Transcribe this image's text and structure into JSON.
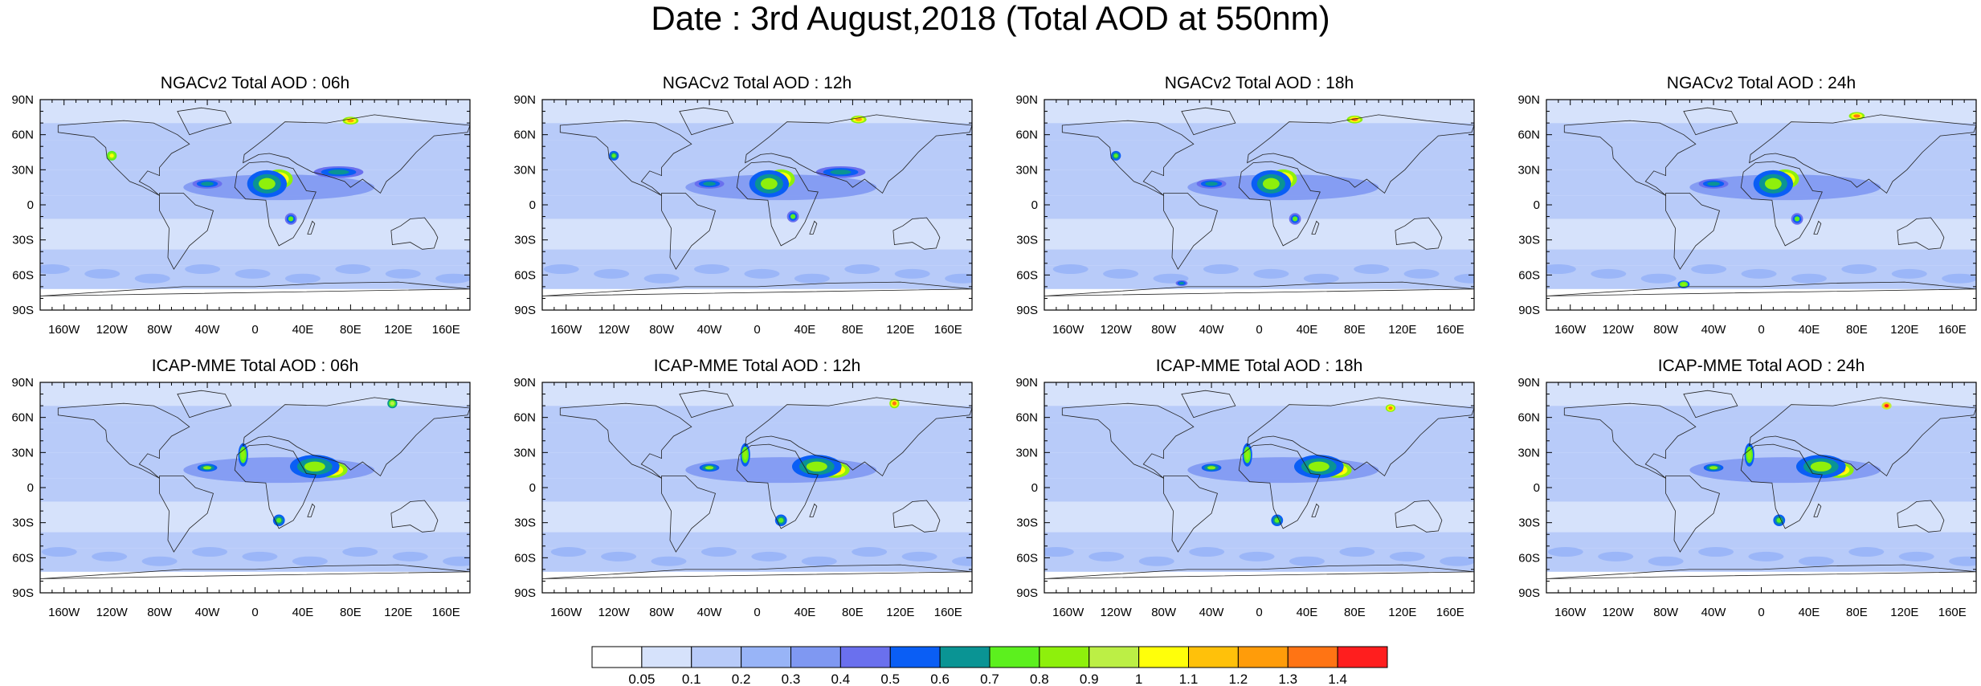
{
  "title": "Date : 3rd August,2018 (Total AOD at 550nm)",
  "axes": {
    "x_ticks": [
      "160W",
      "120W",
      "80W",
      "40W",
      "0",
      "40E",
      "80E",
      "120E",
      "160E"
    ],
    "x_tick_values": [
      -160,
      -120,
      -80,
      -40,
      0,
      40,
      80,
      120,
      160
    ],
    "y_ticks": [
      "90N",
      "60N",
      "30N",
      "0",
      "30S",
      "60S",
      "90S"
    ],
    "y_tick_values": [
      90,
      60,
      30,
      0,
      -30,
      -60,
      -90
    ],
    "xlim": [
      -180,
      180
    ],
    "ylim": [
      -90,
      90
    ]
  },
  "chart_data": [
    {
      "type": "heatmap",
      "title": "NGACv2 Total AOD : 06h",
      "model": "NGACv2",
      "hour": "06h"
    },
    {
      "type": "heatmap",
      "title": "NGACv2 Total AOD : 12h",
      "model": "NGACv2",
      "hour": "12h"
    },
    {
      "type": "heatmap",
      "title": "NGACv2 Total AOD : 18h",
      "model": "NGACv2",
      "hour": "18h"
    },
    {
      "type": "heatmap",
      "title": "NGACv2 Total AOD : 24h",
      "model": "NGACv2",
      "hour": "24h"
    },
    {
      "type": "heatmap",
      "title": "ICAP-MME Total AOD : 06h",
      "model": "ICAP-MME",
      "hour": "06h"
    },
    {
      "type": "heatmap",
      "title": "ICAP-MME Total AOD : 12h",
      "model": "ICAP-MME",
      "hour": "12h"
    },
    {
      "type": "heatmap",
      "title": "ICAP-MME Total AOD : 18h",
      "model": "ICAP-MME",
      "hour": "18h"
    },
    {
      "type": "heatmap",
      "title": "ICAP-MME Total AOD : 24h",
      "model": "ICAP-MME",
      "hour": "24h"
    }
  ],
  "colorbar": {
    "levels": [
      "0.05",
      "0.1",
      "0.2",
      "0.3",
      "0.4",
      "0.5",
      "0.6",
      "0.7",
      "0.8",
      "0.9",
      "1",
      "1.1",
      "1.2",
      "1.3",
      "1.4"
    ],
    "colors": [
      "#ffffff",
      "#d6e2fb",
      "#b8cbf9",
      "#98b4f7",
      "#7f98f2",
      "#6a70ee",
      "#0a5ef5",
      "#0a9494",
      "#5cf01e",
      "#8ef00c",
      "#bcef45",
      "#ffff0a",
      "#ffc10a",
      "#ff9c0a",
      "#ff7414",
      "#ff1e1e"
    ]
  },
  "hotspots": [
    [
      {
        "lon": 20,
        "lat": 22,
        "v": 1.25,
        "rx": 14,
        "ry": 10
      },
      {
        "lon": 10,
        "lat": 18,
        "v": 0.8,
        "rx": 20,
        "ry": 14
      },
      {
        "lon": -40,
        "lat": 18,
        "v": 0.65,
        "rx": 15,
        "ry": 5
      },
      {
        "lon": 80,
        "lat": 72,
        "v": 1.25,
        "rx": 8,
        "ry": 4
      },
      {
        "lon": -120,
        "lat": 42,
        "v": 1.05,
        "rx": 5,
        "ry": 5
      },
      {
        "lon": 30,
        "lat": -12,
        "v": 0.7,
        "rx": 6,
        "ry": 6
      },
      {
        "lon": 70,
        "lat": 28,
        "v": 0.6,
        "rx": 25,
        "ry": 6
      }
    ],
    [
      {
        "lon": 20,
        "lat": 22,
        "v": 1.3,
        "rx": 14,
        "ry": 10
      },
      {
        "lon": 10,
        "lat": 18,
        "v": 0.8,
        "rx": 20,
        "ry": 14
      },
      {
        "lon": -40,
        "lat": 18,
        "v": 0.65,
        "rx": 15,
        "ry": 5
      },
      {
        "lon": 85,
        "lat": 73,
        "v": 1.2,
        "rx": 8,
        "ry": 4
      },
      {
        "lon": -120,
        "lat": 42,
        "v": 0.75,
        "rx": 5,
        "ry": 5
      },
      {
        "lon": 30,
        "lat": -10,
        "v": 0.7,
        "rx": 6,
        "ry": 6
      },
      {
        "lon": 70,
        "lat": 28,
        "v": 0.6,
        "rx": 25,
        "ry": 6
      }
    ],
    [
      {
        "lon": 20,
        "lat": 22,
        "v": 1.25,
        "rx": 14,
        "ry": 10
      },
      {
        "lon": 10,
        "lat": 18,
        "v": 0.8,
        "rx": 20,
        "ry": 14
      },
      {
        "lon": -40,
        "lat": 18,
        "v": 0.65,
        "rx": 15,
        "ry": 5
      },
      {
        "lon": 80,
        "lat": 73,
        "v": 1.3,
        "rx": 8,
        "ry": 4
      },
      {
        "lon": -120,
        "lat": 42,
        "v": 0.75,
        "rx": 5,
        "ry": 5
      },
      {
        "lon": 30,
        "lat": -12,
        "v": 0.7,
        "rx": 6,
        "ry": 6
      },
      {
        "lon": -65,
        "lat": -67,
        "v": 0.6,
        "rx": 6,
        "ry": 3
      }
    ],
    [
      {
        "lon": 20,
        "lat": 22,
        "v": 1.2,
        "rx": 14,
        "ry": 10
      },
      {
        "lon": 10,
        "lat": 18,
        "v": 0.8,
        "rx": 20,
        "ry": 14
      },
      {
        "lon": -40,
        "lat": 18,
        "v": 0.65,
        "rx": 15,
        "ry": 5
      },
      {
        "lon": 80,
        "lat": 76,
        "v": 1.3,
        "rx": 8,
        "ry": 4
      },
      {
        "lon": 30,
        "lat": -12,
        "v": 0.7,
        "rx": 6,
        "ry": 6
      },
      {
        "lon": -65,
        "lat": -68,
        "v": 0.85,
        "rx": 6,
        "ry": 4
      }
    ],
    [
      {
        "lon": 65,
        "lat": 15,
        "v": 1.3,
        "rx": 15,
        "ry": 8
      },
      {
        "lon": 50,
        "lat": 18,
        "v": 0.8,
        "rx": 25,
        "ry": 12
      },
      {
        "lon": -10,
        "lat": 28,
        "v": 0.85,
        "rx": 5,
        "ry": 12
      },
      {
        "lon": -40,
        "lat": 17,
        "v": 0.8,
        "rx": 10,
        "ry": 4
      },
      {
        "lon": 20,
        "lat": -28,
        "v": 0.75,
        "rx": 6,
        "ry": 6
      },
      {
        "lon": 115,
        "lat": 72,
        "v": 0.9,
        "rx": 5,
        "ry": 5
      }
    ],
    [
      {
        "lon": 65,
        "lat": 15,
        "v": 1.3,
        "rx": 15,
        "ry": 8
      },
      {
        "lon": 50,
        "lat": 18,
        "v": 0.8,
        "rx": 25,
        "ry": 12
      },
      {
        "lon": -10,
        "lat": 28,
        "v": 0.85,
        "rx": 5,
        "ry": 12
      },
      {
        "lon": -40,
        "lat": 17,
        "v": 0.8,
        "rx": 10,
        "ry": 4
      },
      {
        "lon": 20,
        "lat": -28,
        "v": 0.75,
        "rx": 6,
        "ry": 6
      },
      {
        "lon": 115,
        "lat": 72,
        "v": 1.3,
        "rx": 5,
        "ry": 5
      }
    ],
    [
      {
        "lon": 65,
        "lat": 15,
        "v": 1.3,
        "rx": 15,
        "ry": 8
      },
      {
        "lon": 50,
        "lat": 18,
        "v": 0.8,
        "rx": 25,
        "ry": 12
      },
      {
        "lon": -10,
        "lat": 28,
        "v": 0.85,
        "rx": 5,
        "ry": 12
      },
      {
        "lon": -40,
        "lat": 17,
        "v": 0.8,
        "rx": 10,
        "ry": 4
      },
      {
        "lon": 15,
        "lat": -28,
        "v": 0.75,
        "rx": 6,
        "ry": 6
      },
      {
        "lon": 110,
        "lat": 68,
        "v": 1.3,
        "rx": 5,
        "ry": 4
      }
    ],
    [
      {
        "lon": 65,
        "lat": 15,
        "v": 1.3,
        "rx": 15,
        "ry": 8
      },
      {
        "lon": 50,
        "lat": 18,
        "v": 0.8,
        "rx": 25,
        "ry": 12
      },
      {
        "lon": -10,
        "lat": 28,
        "v": 0.85,
        "rx": 5,
        "ry": 12
      },
      {
        "lon": -40,
        "lat": 17,
        "v": 0.8,
        "rx": 10,
        "ry": 4
      },
      {
        "lon": 15,
        "lat": -28,
        "v": 0.75,
        "rx": 6,
        "ry": 6
      },
      {
        "lon": 105,
        "lat": 70,
        "v": 1.4,
        "rx": 5,
        "ry": 4
      }
    ]
  ]
}
